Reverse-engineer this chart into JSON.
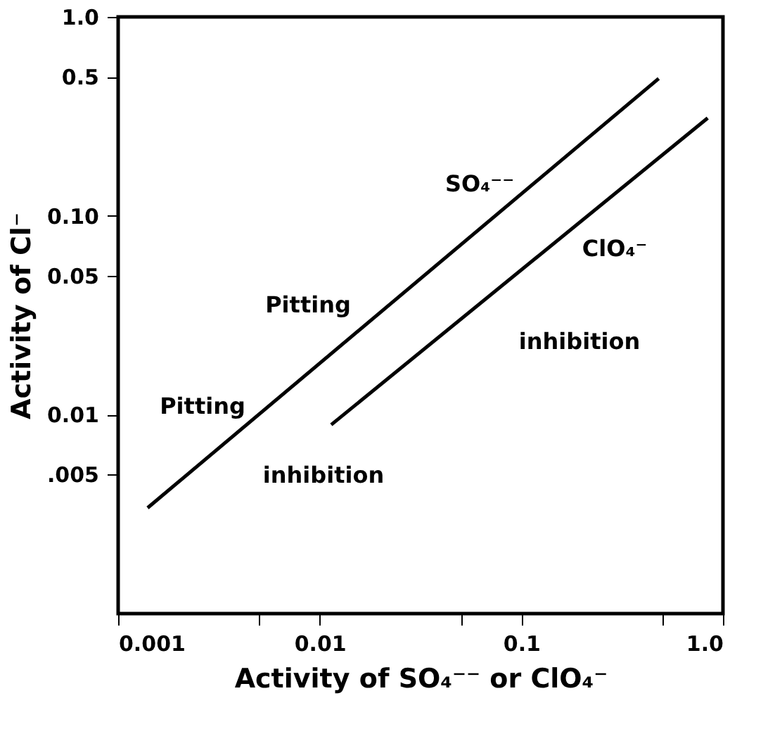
{
  "chart_data": {
    "type": "line",
    "xlabel": "Activity of SO₄⁻⁻ or ClO₄⁻",
    "ylabel": "Activity of Cl⁻",
    "log": "xy",
    "xlim": [
      0.001,
      1
    ],
    "ylim": [
      0.001,
      1
    ],
    "xticks": [
      0.001,
      {
        "value": 0.005,
        "label": null
      },
      0.01,
      {
        "value": 0.05,
        "label": null
      },
      0.1,
      {
        "value": 0.5,
        "label": null
      },
      {
        "value": 1,
        "label": "1.0"
      }
    ],
    "yticks": [
      {
        "value": 0.005,
        "label": ".005"
      },
      0.01,
      0.05,
      {
        "value": 0.1,
        "label": "0.10"
      },
      0.5,
      {
        "value": 1,
        "label": "1.0"
      }
    ],
    "grid": false,
    "marker": "none",
    "line_style": "solid",
    "series": [
      {
        "name": "SO₄⁻⁻",
        "color": "#000000",
        "x": [
          0.0014,
          0.48
        ],
        "values": [
          0.0034,
          0.49
        ]
      },
      {
        "name": "ClO₄⁻",
        "color": "#000000",
        "x": [
          0.0114,
          0.84
        ],
        "values": [
          0.0089,
          0.31
        ]
      }
    ],
    "annotations": [
      "Pitting",
      "inhibition",
      "Pitting",
      "inhibition"
    ]
  }
}
